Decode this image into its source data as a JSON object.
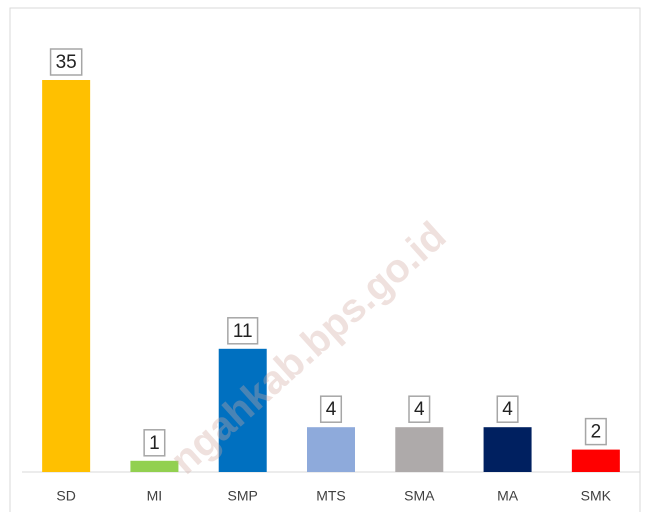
{
  "chart_data": {
    "type": "bar",
    "categories": [
      "SD",
      "MI",
      "SMP",
      "MTS",
      "SMA",
      "MA",
      "SMK"
    ],
    "values": [
      35,
      1,
      11,
      4,
      4,
      4,
      2
    ],
    "colors": [
      "#ffc000",
      "#92d050",
      "#0070c0",
      "#8eaadb",
      "#aeaaaa",
      "#002060",
      "#ff0000"
    ],
    "ylim": [
      0,
      40
    ],
    "watermark": "ngahkab.bps.go.id"
  }
}
